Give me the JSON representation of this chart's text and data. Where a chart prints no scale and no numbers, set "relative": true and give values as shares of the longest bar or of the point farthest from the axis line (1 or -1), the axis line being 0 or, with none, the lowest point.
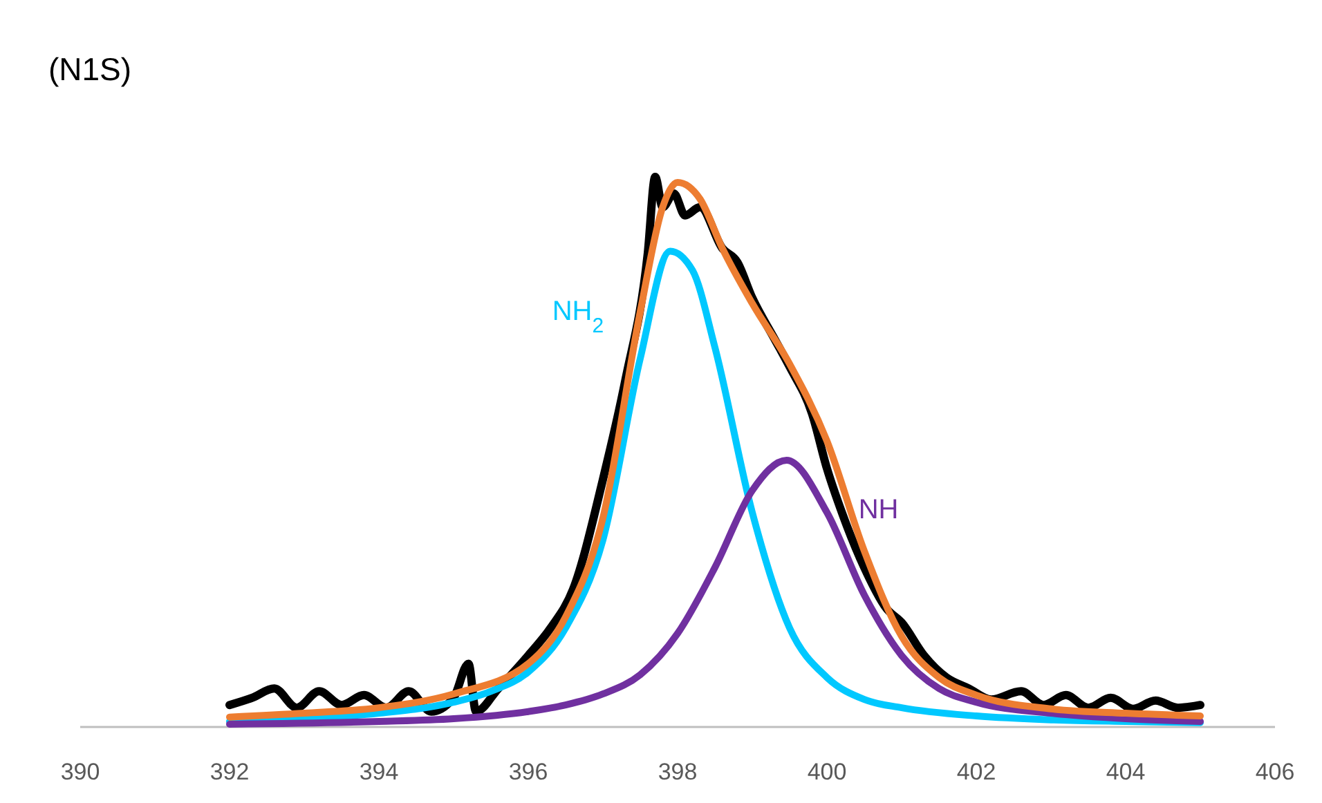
{
  "chart_data": {
    "type": "line",
    "title": "(N1S)",
    "relative": true,
    "tick_labels": "x",
    "line_style": "solid",
    "marker": "none",
    "xlim": [
      390,
      406
    ],
    "xticks": [
      390,
      392,
      394,
      396,
      398,
      400,
      402,
      404,
      406
    ],
    "series": [
      {
        "color": "#000000",
        "x": [
          392,
          392.3,
          392.6,
          392.9,
          393.2,
          393.5,
          393.8,
          394.1,
          394.4,
          394.7,
          395,
          395.2,
          395.3,
          395.6,
          396,
          396.3,
          396.6,
          397,
          397.3,
          397.6,
          397.7,
          397.8,
          397.95,
          398.1,
          398.3,
          398.6,
          398.8,
          399,
          399.3,
          399.5,
          399.8,
          400,
          400.2,
          400.5,
          400.8,
          401,
          401.3,
          401.6,
          401.9,
          402.2,
          402.6,
          402.9,
          403.2,
          403.5,
          403.8,
          404.1,
          404.4,
          404.7,
          405
        ],
        "values": [
          0.04,
          0.053,
          0.07,
          0.035,
          0.065,
          0.04,
          0.058,
          0.035,
          0.065,
          0.028,
          0.053,
          0.115,
          0.028,
          0.07,
          0.13,
          0.18,
          0.25,
          0.45,
          0.63,
          0.86,
          1.0,
          0.945,
          0.97,
          0.93,
          0.945,
          0.87,
          0.845,
          0.78,
          0.705,
          0.655,
          0.57,
          0.47,
          0.39,
          0.29,
          0.215,
          0.19,
          0.13,
          0.09,
          0.07,
          0.05,
          0.065,
          0.04,
          0.058,
          0.035,
          0.053,
          0.033,
          0.048,
          0.035,
          0.04
        ]
      },
      {
        "name": "NH$_{2}$",
        "color": "#00c8ff",
        "x": [
          392,
          393,
          394,
          395,
          395.5,
          396,
          396.5,
          397,
          397.5,
          397.9,
          398.2,
          398.5,
          399,
          399.5,
          400,
          400.5,
          401,
          402,
          403,
          404,
          405
        ],
        "values": [
          0.01,
          0.015,
          0.025,
          0.045,
          0.065,
          0.1,
          0.18,
          0.34,
          0.67,
          0.865,
          0.83,
          0.69,
          0.39,
          0.18,
          0.09,
          0.05,
          0.035,
          0.02,
          0.013,
          0.01,
          0.008
        ]
      },
      {
        "name": "NH",
        "color": "#7030a0",
        "x": [
          392,
          394,
          395,
          396,
          396.5,
          397,
          397.5,
          398,
          398.5,
          399,
          399.46,
          400,
          400.5,
          401,
          401.5,
          402,
          403,
          404,
          405
        ],
        "values": [
          0.005,
          0.01,
          0.015,
          0.028,
          0.04,
          0.06,
          0.095,
          0.17,
          0.29,
          0.43,
          0.485,
          0.39,
          0.24,
          0.13,
          0.07,
          0.045,
          0.025,
          0.015,
          0.01
        ]
      },
      {
        "color": "#ed7d31",
        "x": [
          392,
          393,
          394,
          395,
          396,
          396.5,
          397,
          397.5,
          397.8,
          398,
          398.3,
          398.6,
          399,
          399.5,
          400,
          400.5,
          401,
          401.5,
          402,
          403,
          404,
          405
        ],
        "values": [
          0.018,
          0.025,
          0.035,
          0.06,
          0.115,
          0.2,
          0.38,
          0.755,
          0.945,
          0.99,
          0.96,
          0.87,
          0.77,
          0.66,
          0.52,
          0.32,
          0.165,
          0.09,
          0.058,
          0.033,
          0.025,
          0.02
        ]
      }
    ]
  }
}
